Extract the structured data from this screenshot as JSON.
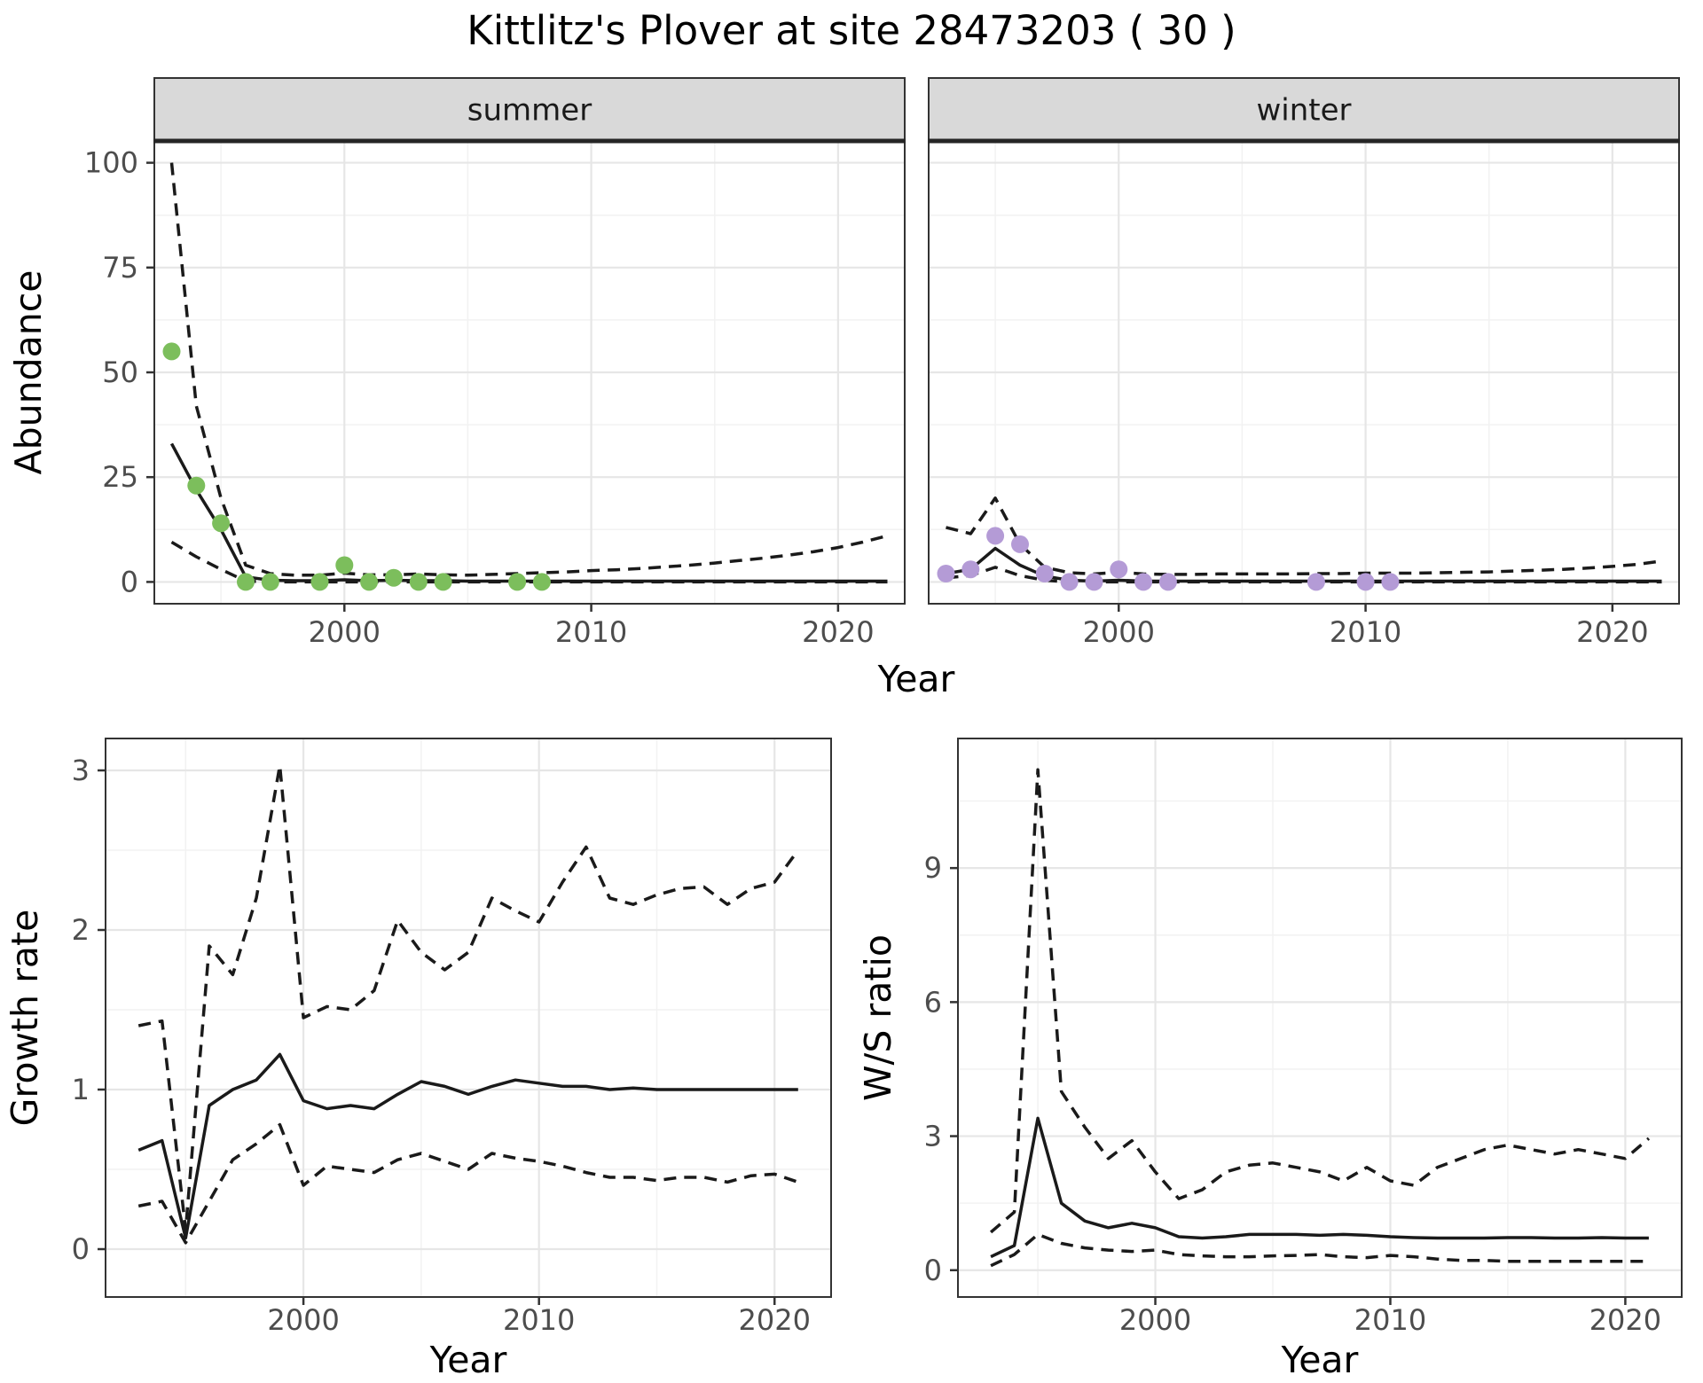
{
  "title": "Kittlitz's Plover at site 28473203 ( 30 )",
  "colors": {
    "summer_points": "#7CBE5C",
    "winter_points": "#B49BD6",
    "fit_line": "#1a1a1a",
    "ci_line": "#1a1a1a",
    "strip_bg": "#D9D9D9",
    "strip_underline": "#262626",
    "panel_border": "#333333",
    "grid_major": "#E6E6E6",
    "grid_minor": "#F2F2F2",
    "tick_label": "#4D4D4D",
    "panel_bg": "#FFFFFF"
  },
  "chart_data": [
    {
      "id": "abundance",
      "type": "line",
      "title": "Kittlitz's Plover at site 28473203 ( 30 )",
      "xlabel": "Year",
      "ylabel": "Abundance",
      "xlim": [
        1992.3,
        2022.7
      ],
      "ylim": [
        -5.2,
        105.2
      ],
      "xticks": [
        2000,
        2010,
        2020
      ],
      "yticks": [
        0,
        25,
        50,
        75,
        100
      ],
      "xminor": [
        1995,
        2005,
        2015
      ],
      "yminor": [
        12.5,
        37.5,
        62.5,
        87.5
      ],
      "legend": "none",
      "grid": "on",
      "years": [
        1993,
        1994,
        1995,
        1996,
        1997,
        1998,
        1999,
        2000,
        2001,
        2002,
        2003,
        2004,
        2005,
        2006,
        2007,
        2008,
        2009,
        2010,
        2011,
        2012,
        2013,
        2014,
        2015,
        2016,
        2017,
        2018,
        2019,
        2020,
        2021,
        2022
      ],
      "facets": [
        {
          "label": "summer",
          "fit": [
            33,
            22,
            12.5,
            1.2,
            0.4,
            0.3,
            0.3,
            0.5,
            0.3,
            0.4,
            0.3,
            0.3,
            0.2,
            0.2,
            0.2,
            0.2,
            0.2,
            0.2,
            0.2,
            0.2,
            0.2,
            0.2,
            0.2,
            0.2,
            0.2,
            0.2,
            0.2,
            0.2,
            0.2,
            0.2
          ],
          "upper": [
            100,
            42,
            20,
            4,
            2,
            1.6,
            1.6,
            2.1,
            1.7,
            1.7,
            1.9,
            1.7,
            1.6,
            1.8,
            2.0,
            2.2,
            2.4,
            2.7,
            2.9,
            3.2,
            3.6,
            4.0,
            4.5,
            5.1,
            5.7,
            6.4,
            7.2,
            8.2,
            9.5,
            11.0
          ],
          "lower": [
            9.5,
            6,
            3,
            0.2,
            0,
            0,
            0,
            0,
            0,
            0,
            0,
            0,
            0,
            0,
            0,
            0,
            0,
            0,
            0,
            0,
            0,
            0,
            0,
            0,
            0,
            0,
            0,
            0,
            0,
            0
          ],
          "obs_years": [
            1993,
            1994,
            1995,
            1996,
            1997,
            1999,
            2000,
            2001,
            2002,
            2003,
            2004,
            2007,
            2008
          ],
          "obs_values": [
            55,
            23,
            14,
            0,
            0,
            0,
            4,
            0,
            1,
            0,
            0,
            0,
            0
          ]
        },
        {
          "label": "winter",
          "fit": [
            2,
            3,
            8,
            4,
            1.4,
            0.4,
            0.2,
            0.4,
            0.2,
            0.2,
            0.2,
            0.2,
            0.2,
            0.2,
            0.2,
            0.2,
            0.2,
            0.2,
            0.2,
            0.2,
            0.2,
            0.2,
            0.2,
            0.2,
            0.2,
            0.2,
            0.2,
            0.2,
            0.2,
            0.2
          ],
          "upper": [
            13,
            11.5,
            20,
            9,
            3.5,
            2.2,
            1.9,
            2.3,
            1.9,
            1.8,
            1.8,
            1.9,
            1.9,
            1.9,
            1.9,
            2.0,
            2.0,
            2.1,
            2.1,
            2.1,
            2.2,
            2.3,
            2.4,
            2.6,
            2.8,
            3.0,
            3.3,
            3.7,
            4.2,
            5.0
          ],
          "lower": [
            1,
            1.5,
            3.5,
            1.5,
            0.4,
            0,
            0,
            0,
            0,
            0,
            0,
            0,
            0,
            0,
            0,
            0,
            0,
            0,
            0,
            0,
            0,
            0,
            0,
            0,
            0,
            0,
            0,
            0,
            0,
            0
          ],
          "obs_years": [
            1993,
            1994,
            1995,
            1996,
            1997,
            1998,
            1999,
            2000,
            2001,
            2002,
            2008,
            2010,
            2011
          ],
          "obs_values": [
            2,
            3,
            11,
            9,
            2,
            0,
            0,
            3,
            0,
            0,
            0,
            0,
            0
          ]
        }
      ]
    },
    {
      "id": "growth-rate",
      "type": "line",
      "title": "",
      "xlabel": "Year",
      "ylabel": "Growth rate",
      "xlim": [
        1991.6,
        2022.4
      ],
      "ylim": [
        -0.3,
        3.2
      ],
      "xticks": [
        2000,
        2010,
        2020
      ],
      "yticks": [
        0,
        1,
        2,
        3
      ],
      "xminor": [
        1995,
        2005,
        2015
      ],
      "yminor": [
        0.5,
        1.5,
        2.5
      ],
      "legend": "none",
      "grid": "on",
      "years": [
        1993,
        1994,
        1995,
        1996,
        1997,
        1998,
        1999,
        2000,
        2001,
        2002,
        2003,
        2004,
        2005,
        2006,
        2007,
        2008,
        2009,
        2010,
        2011,
        2012,
        2013,
        2014,
        2015,
        2016,
        2017,
        2018,
        2019,
        2020,
        2021
      ],
      "fit": [
        0.62,
        0.68,
        0.07,
        0.9,
        1.0,
        1.06,
        1.22,
        0.93,
        0.88,
        0.9,
        0.88,
        0.97,
        1.05,
        1.02,
        0.97,
        1.02,
        1.06,
        1.04,
        1.02,
        1.02,
        1.0,
        1.01,
        1.0,
        1.0,
        1.0,
        1.0,
        1.0,
        1.0,
        1.0
      ],
      "upper": [
        1.4,
        1.43,
        0.12,
        1.9,
        1.72,
        2.2,
        3.03,
        1.45,
        1.52,
        1.5,
        1.62,
        2.06,
        1.86,
        1.75,
        1.86,
        2.2,
        2.12,
        2.05,
        2.3,
        2.52,
        2.2,
        2.16,
        2.22,
        2.26,
        2.27,
        2.16,
        2.26,
        2.3,
        2.5
      ],
      "lower": [
        0.27,
        0.3,
        0.04,
        0.3,
        0.56,
        0.66,
        0.78,
        0.4,
        0.52,
        0.5,
        0.48,
        0.56,
        0.6,
        0.55,
        0.5,
        0.6,
        0.57,
        0.55,
        0.52,
        0.48,
        0.45,
        0.45,
        0.43,
        0.45,
        0.45,
        0.42,
        0.46,
        0.47,
        0.42
      ]
    },
    {
      "id": "ws-ratio",
      "type": "line",
      "title": "",
      "xlabel": "Year",
      "ylabel": "W/S ratio",
      "xlim": [
        1991.6,
        2022.4
      ],
      "ylim": [
        -0.6,
        11.9
      ],
      "xticks": [
        2000,
        2010,
        2020
      ],
      "yticks": [
        0,
        3,
        6,
        9
      ],
      "xminor": [
        1995,
        2005,
        2015
      ],
      "yminor": [
        1.5,
        4.5,
        7.5,
        10.5
      ],
      "legend": "none",
      "grid": "on",
      "years": [
        1993,
        1994,
        1995,
        1996,
        1997,
        1998,
        1999,
        2000,
        2001,
        2002,
        2003,
        2004,
        2005,
        2006,
        2007,
        2008,
        2009,
        2010,
        2011,
        2012,
        2013,
        2014,
        2015,
        2016,
        2017,
        2018,
        2019,
        2020,
        2021
      ],
      "fit": [
        0.3,
        0.55,
        3.4,
        1.5,
        1.1,
        0.95,
        1.05,
        0.95,
        0.75,
        0.72,
        0.75,
        0.8,
        0.8,
        0.8,
        0.78,
        0.8,
        0.78,
        0.75,
        0.73,
        0.72,
        0.72,
        0.72,
        0.73,
        0.73,
        0.72,
        0.72,
        0.73,
        0.72,
        0.72
      ],
      "upper": [
        0.85,
        1.3,
        11.2,
        4.0,
        3.2,
        2.5,
        2.9,
        2.2,
        1.6,
        1.8,
        2.2,
        2.35,
        2.4,
        2.3,
        2.2,
        2.0,
        2.3,
        2.0,
        1.9,
        2.3,
        2.5,
        2.7,
        2.8,
        2.7,
        2.6,
        2.7,
        2.6,
        2.5,
        2.95
      ],
      "lower": [
        0.1,
        0.35,
        0.8,
        0.6,
        0.5,
        0.45,
        0.42,
        0.45,
        0.35,
        0.32,
        0.3,
        0.3,
        0.32,
        0.33,
        0.35,
        0.3,
        0.28,
        0.33,
        0.3,
        0.25,
        0.22,
        0.22,
        0.2,
        0.2,
        0.2,
        0.2,
        0.2,
        0.2,
        0.2
      ]
    }
  ]
}
